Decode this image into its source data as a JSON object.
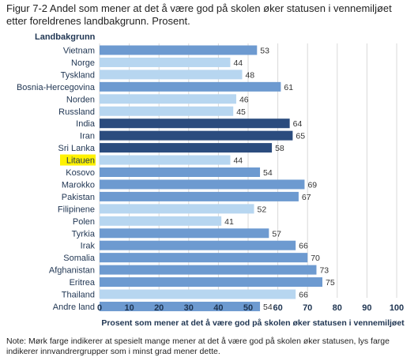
{
  "figure": {
    "title": "Figur 7-2 Andel som mener at det å være god på skolen øker statusen i vennemiljøet etter foreldrenes landbakgrunn. Prosent.",
    "note": "Note: Mørk farge indikerer at spesielt mange mener at det å være god på skolen øker statusen, lys farge indikerer innvandrergrupper som i minst grad mener dette."
  },
  "colors": {
    "dark": "#2b4c7e",
    "medium": "#6d9ad0",
    "light": "#b7d6f0",
    "highlight": "#fff200",
    "grid": "#d9d9d9"
  },
  "chart_data": {
    "type": "bar",
    "orientation": "horizontal",
    "category_axis_title": "Landbakgrunn",
    "xlabel": "Prosent som mener at det å være god på skolen øker statusen i vennemiljøet",
    "xlim": [
      0,
      100
    ],
    "xticks": [
      0,
      10,
      20,
      30,
      40,
      50,
      60,
      70,
      80,
      90,
      100
    ],
    "grid": "vertical",
    "highlighted_category": "Litauen",
    "categories": [
      "Vietnam",
      "Norge",
      "Tyskland",
      "Bosnia-Hercegovina",
      "Norden",
      "Russland",
      "India",
      "Iran",
      "Sri Lanka",
      "Litauen",
      "Kosovo",
      "Marokko",
      "Pakistan",
      "Filipinene",
      "Polen",
      "Tyrkia",
      "Irak",
      "Somalia",
      "Afghanistan",
      "Eritrea",
      "Thailand",
      "Andre land"
    ],
    "values": [
      53,
      44,
      48,
      61,
      46,
      45,
      64,
      65,
      58,
      44,
      54,
      69,
      67,
      52,
      41,
      57,
      66,
      70,
      73,
      75,
      66,
      54
    ],
    "shades": [
      "medium",
      "light",
      "light",
      "medium",
      "light",
      "light",
      "dark",
      "dark",
      "dark",
      "light",
      "medium",
      "medium",
      "medium",
      "light",
      "light",
      "medium",
      "medium",
      "medium",
      "medium",
      "medium",
      "light",
      "medium"
    ]
  }
}
